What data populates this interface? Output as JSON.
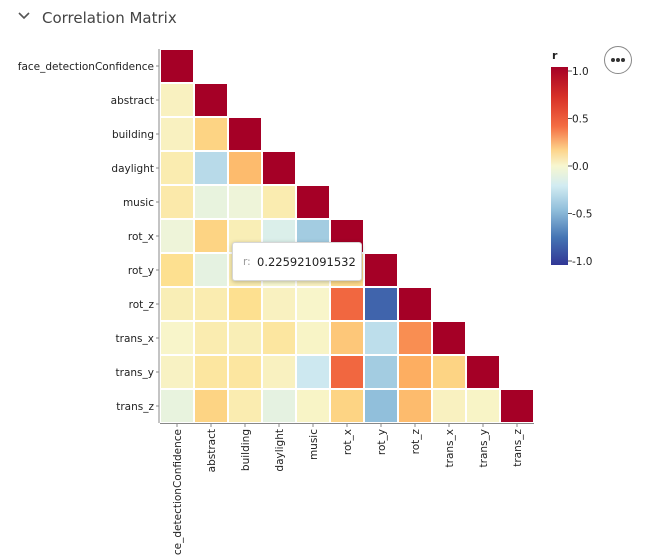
{
  "section": {
    "title": "Correlation Matrix",
    "toggle_icon": "chevron-down-icon"
  },
  "menu": {
    "icon": "more-horizontal-icon"
  },
  "tooltip": {
    "key": "r:",
    "value": "0.225921091532"
  },
  "chart_data": {
    "type": "heatmap",
    "variables": [
      "face_detectionConfidence",
      "abstract",
      "building",
      "daylight",
      "music",
      "rot_x",
      "rot_y",
      "rot_z",
      "trans_x",
      "trans_y",
      "trans_z"
    ],
    "matrix": [
      [
        1.0
      ],
      [
        0.05,
        1.0
      ],
      [
        0.05,
        0.25,
        1.0
      ],
      [
        0.1,
        -0.3,
        0.35,
        1.0
      ],
      [
        0.12,
        -0.08,
        -0.05,
        0.1,
        1.0
      ],
      [
        -0.05,
        0.25,
        0.08,
        -0.15,
        -0.38,
        1.0
      ],
      [
        0.2,
        -0.1,
        0.1,
        0.0,
        0.05,
        0.226,
        1.0
      ],
      [
        0.08,
        0.1,
        0.2,
        0.05,
        0.02,
        0.62,
        -0.78,
        1.0
      ],
      [
        0.02,
        0.1,
        0.08,
        0.15,
        0.03,
        0.3,
        -0.28,
        0.5,
        1.0
      ],
      [
        0.04,
        0.15,
        0.15,
        0.05,
        -0.22,
        0.62,
        -0.38,
        0.4,
        0.25,
        1.0
      ],
      [
        -0.08,
        0.25,
        0.1,
        -0.1,
        0.03,
        0.25,
        -0.45,
        0.35,
        0.05,
        0.03,
        1.0
      ]
    ],
    "colorbar": {
      "label": "r",
      "ticks": [
        "1.0",
        "0.5",
        "0.0",
        "-0.5",
        "-1.0"
      ],
      "range": [
        -1,
        1
      ]
    },
    "colors": {
      "pos": "#b2182b",
      "mid": "#f7f7d0",
      "neg": "#2b4a9a"
    }
  }
}
